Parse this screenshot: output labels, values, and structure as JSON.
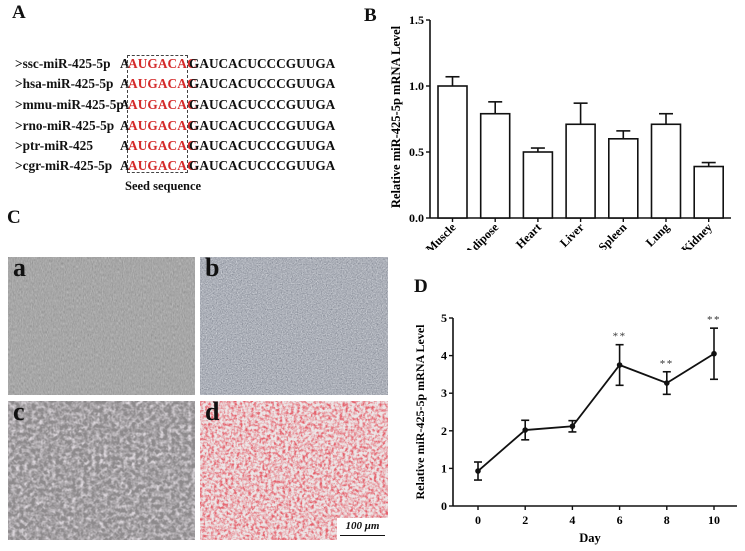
{
  "figure": {
    "panel_labels": {
      "A": "A",
      "B": "B",
      "C": "C",
      "D": "D"
    }
  },
  "panel_a": {
    "sequences": [
      {
        "label": ">ssc-miR-425-5p",
        "prefix": "A",
        "seed": "AUGACAC",
        "rest": "GAUCACUCCCGUUGA"
      },
      {
        "label": ">hsa-miR-425-5p",
        "prefix": "A",
        "seed": "AUGACAC",
        "rest": "GAUCACUCCCGUUGA"
      },
      {
        "label": ">mmu-miR-425-5p",
        "prefix": "A",
        "seed": "AUGACAC",
        "rest": "GAUCACUCCCGUUGA"
      },
      {
        "label": ">rno-miR-425-5p",
        "prefix": "A",
        "seed": "AUGACAC",
        "rest": "GAUCACUCCCGUUGA"
      },
      {
        "label": ">ptr-miR-425",
        "prefix": "A",
        "seed": "AUGACAC",
        "rest": "GAUCACUCCCGUUGA"
      },
      {
        "label": ">cgr-miR-425-5p",
        "prefix": "A",
        "seed": "AUGACAC",
        "rest": "GAUCACUCCCGUUGA"
      }
    ],
    "seed_caption": "Seed sequence",
    "seed_color": "#d42a2a"
  },
  "panel_c": {
    "images": [
      {
        "label": "a",
        "base": "#8f8f8f"
      },
      {
        "label": "b",
        "base": "#7e8390"
      },
      {
        "label": "c",
        "base": "#9c9599"
      },
      {
        "label": "d",
        "base": "#ece4e4"
      }
    ],
    "scale_bar": "100 μm"
  },
  "chart_data": [
    {
      "type": "bar",
      "title": "",
      "xlabel": "",
      "ylabel": "Relative miR-425-5p mRNA Level",
      "categories": [
        "Muscle",
        "Adipose",
        "Heart",
        "Liver",
        "Spleen",
        "Lung",
        "Kidney"
      ],
      "values": [
        1.0,
        0.79,
        0.5,
        0.71,
        0.6,
        0.71,
        0.39
      ],
      "error_upper": [
        0.07,
        0.09,
        0.03,
        0.16,
        0.06,
        0.08,
        0.03
      ],
      "ylim": [
        0,
        1.5
      ],
      "yticks": [
        "0.0",
        "0.5",
        "1.0",
        "1.5"
      ],
      "grid": false
    },
    {
      "type": "line",
      "title": "",
      "xlabel": "Day",
      "ylabel": "Relative miR-425-5p mRNA Level",
      "x": [
        0,
        2,
        4,
        6,
        8,
        10
      ],
      "values": [
        0.93,
        2.02,
        2.12,
        3.75,
        3.27,
        4.05
      ],
      "error": [
        0.24,
        0.26,
        0.15,
        0.54,
        0.3,
        0.68
      ],
      "annotations": [
        "",
        "",
        "",
        "**",
        "**",
        "**"
      ],
      "ylim": [
        0,
        5
      ],
      "yticks": [
        "0",
        "1",
        "2",
        "3",
        "4",
        "5"
      ],
      "xticks": [
        "0",
        "2",
        "4",
        "6",
        "8",
        "10"
      ],
      "grid": false
    }
  ]
}
